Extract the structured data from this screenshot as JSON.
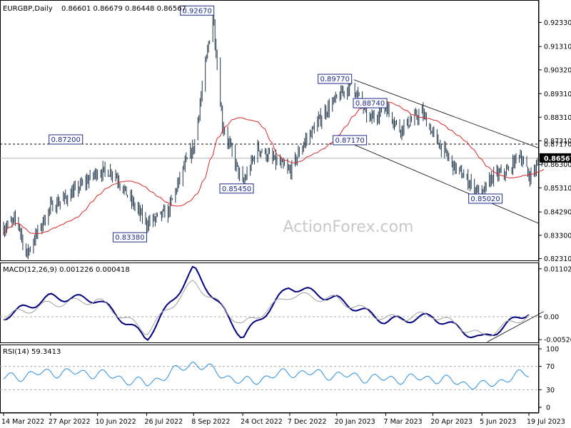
{
  "chart_data": [
    {
      "type": "candlestick",
      "title": "EURGBP,Daily",
      "ohlc_header": "0.86601 0.86679 0.86448 0.86567",
      "ylim": [
        0.8206,
        0.9465
      ],
      "y_ticks": [
        "0.92330",
        "0.91310",
        "0.90320",
        "0.89310",
        "0.88310",
        "0.87310",
        "0.86300",
        "0.85310",
        "0.84290",
        "0.83300",
        "0.82310"
      ],
      "current_price": "0.86567",
      "current_price_color": "#000000",
      "support_resistance": {
        "level": 0.8717,
        "label": "0.87170"
      },
      "annotations": [
        "0.92670",
        "0.89770",
        "0.88740",
        "0.87200",
        "0.87170",
        "0.85450",
        "0.83380",
        "0.85020"
      ],
      "x_labels": [
        "14 Mar 2022",
        "27 Apr 2022",
        "10 Jun 2022",
        "26 Jul 2022",
        "8 Sep 2022",
        "24 Oct 2022",
        "7 Dec 2022",
        "20 Jan 2023",
        "7 Mar 2023",
        "20 Apr 2023",
        "5 Jun 2023",
        "19 Jul 2023"
      ],
      "price_path": [
        [
          "14 Mar 2022",
          0.836
        ],
        [
          "27 Mar 2022",
          0.84
        ],
        [
          "4 Apr 2022",
          0.8245
        ],
        [
          "27 Apr 2022",
          0.845
        ],
        [
          "15 May 2022",
          0.85
        ],
        [
          "10 Jun 2022",
          0.86
        ],
        [
          "25 Jun 2022",
          0.86
        ],
        [
          "8 Jul 2022",
          0.85
        ],
        [
          "26 Jul 2022",
          0.838
        ],
        [
          "15 Aug 2022",
          0.843
        ],
        [
          "30 Aug 2022",
          0.862
        ],
        [
          "8 Sep 2022",
          0.87
        ],
        [
          "26 Sep 2022",
          0.9267
        ],
        [
          "5 Oct 2022",
          0.88
        ],
        [
          "24 Oct 2022",
          0.8545
        ],
        [
          "7 Nov 2022",
          0.87
        ],
        [
          "7 Dec 2022",
          0.86
        ],
        [
          "20 Dec 2022",
          0.872
        ],
        [
          "10 Jan 2023",
          0.886
        ],
        [
          "3 Feb 2023",
          0.8977
        ],
        [
          "20 Feb 2023",
          0.882
        ],
        [
          "7 Mar 2023",
          0.8874
        ],
        [
          "20 Mar 2023",
          0.878
        ],
        [
          "10 Apr 2023",
          0.885
        ],
        [
          "20 Apr 2023",
          0.876
        ],
        [
          "10 May 2023",
          0.862
        ],
        [
          "5 Jun 2023",
          0.8502
        ],
        [
          "15 Jun 2023",
          0.858
        ],
        [
          "30 Jun 2023",
          0.8602
        ],
        [
          "10 Jul 2023",
          0.868
        ],
        [
          "19 Jul 2023",
          0.858
        ],
        [
          "2 Aug 2023",
          0.8657
        ]
      ],
      "ma_color": "#d82828",
      "candle_color": "#20364b",
      "channel_color": "#000000",
      "watermark": "ActionForex.com"
    },
    {
      "type": "line",
      "title": "MACD(12,26,9) 0.001226 0.000418",
      "ylim": [
        -0.0059,
        0.0123
      ],
      "y_ticks": [
        "0.011027",
        "0.00",
        "-0.005267"
      ],
      "current_value": "0.00",
      "series": [
        {
          "color": "#000080",
          "x": [
            "14 Mar 2022",
            "27 Apr 2022",
            "10 Jun 2022",
            "26 Jul 2022",
            "8 Sep 2022",
            "24 Oct 2022",
            "7 Dec 2022",
            "20 Jan 2023",
            "7 Mar 2023",
            "20 Apr 2023",
            "5 Jun 2023",
            "19 Jul 2023"
          ],
          "values": [
            0.0,
            0.0045,
            0.004,
            -0.005,
            0.011,
            -0.0048,
            0.007,
            0.004,
            -0.001,
            0.0,
            -0.0052,
            0.0012
          ]
        },
        {
          "color": "#a0a0a0",
          "x": [
            "14 Mar 2022",
            "27 Apr 2022",
            "10 Jun 2022",
            "26 Jul 2022",
            "8 Sep 2022",
            "24 Oct 2022",
            "7 Dec 2022",
            "20 Jan 2023",
            "7 Mar 2023",
            "20 Apr 2023",
            "5 Jun 2023",
            "19 Jul 2023"
          ],
          "values": [
            0.0,
            0.003,
            0.0038,
            -0.0035,
            0.008,
            -0.002,
            0.005,
            0.004,
            -0.0005,
            0.0005,
            -0.0045,
            0.0004
          ]
        }
      ]
    },
    {
      "type": "line",
      "title": "RSI(14) 59.3413",
      "ylim": [
        0,
        100
      ],
      "y_ticks": [
        "100",
        "70",
        "30",
        "0"
      ],
      "series": [
        {
          "color": "#2a8fe0",
          "x": [
            "14 Mar 2022",
            "27 Apr 2022",
            "10 Jun 2022",
            "26 Jul 2022",
            "8 Sep 2022",
            "24 Oct 2022",
            "7 Dec 2022",
            "20 Jan 2023",
            "7 Mar 2023",
            "20 Apr 2023",
            "5 Jun 2023",
            "19 Jul 2023"
          ],
          "values": [
            50,
            60,
            58,
            40,
            76,
            42,
            60,
            55,
            48,
            50,
            36,
            59.3413
          ]
        }
      ]
    }
  ]
}
